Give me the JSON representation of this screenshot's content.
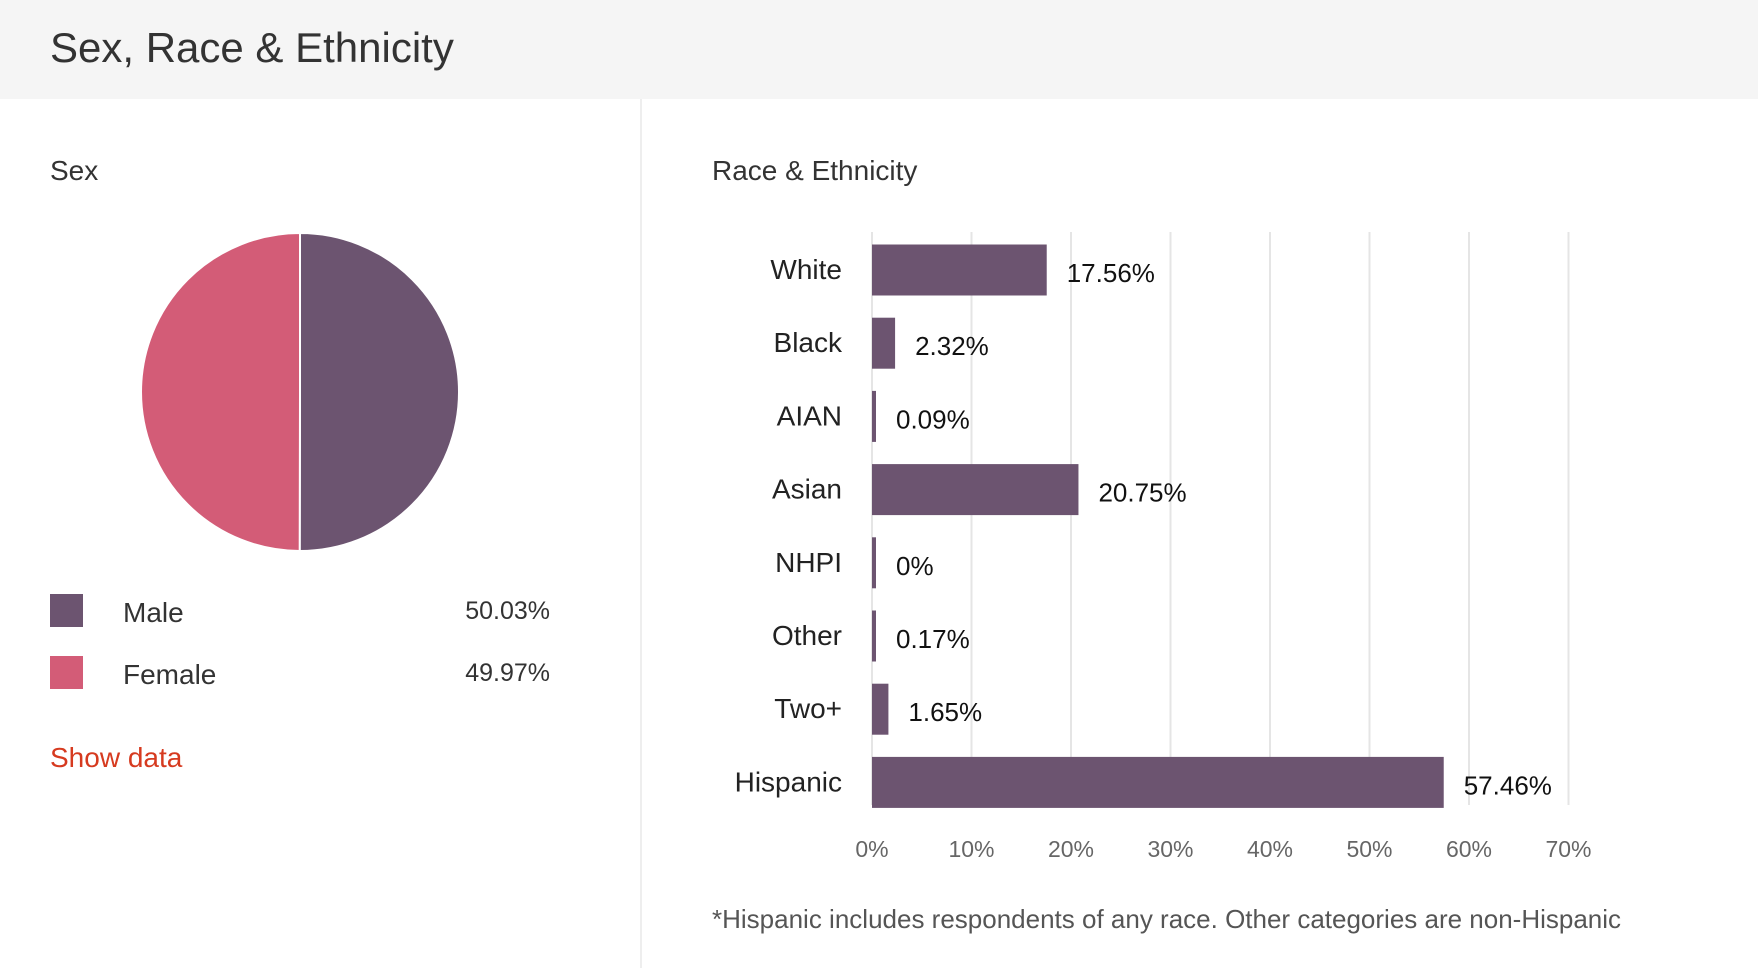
{
  "header": {
    "title": "Sex, Race & Ethnicity"
  },
  "sex_panel": {
    "title": "Sex",
    "legend": [
      {
        "label": "Male",
        "value": "50.03%",
        "color": "#6c5470"
      },
      {
        "label": "Female",
        "value": "49.97%",
        "color": "#d35c77"
      }
    ],
    "show_data_label": "Show data"
  },
  "race_panel": {
    "title": "Race & Ethnicity",
    "footnote": "*Hispanic includes respondents of any race. Other categories are non-Hispanic"
  },
  "colors": {
    "bar": "#6c5470",
    "male": "#6c5470",
    "female": "#d35c77",
    "link": "#d63a1f",
    "header_bg": "#f5f5f5",
    "grid": "#e5e5e5"
  },
  "chart_data": [
    {
      "type": "pie",
      "title": "Sex",
      "categories": [
        "Male",
        "Female"
      ],
      "values": [
        50.03,
        49.97
      ],
      "colors": [
        "#6c5470",
        "#d35c77"
      ]
    },
    {
      "type": "bar",
      "orientation": "horizontal",
      "title": "Race & Ethnicity",
      "categories": [
        "White",
        "Black",
        "AIAN",
        "Asian",
        "NHPI",
        "Other",
        "Two+",
        "Hispanic"
      ],
      "values": [
        17.56,
        2.32,
        0.09,
        20.75,
        0,
        0.17,
        1.65,
        57.46
      ],
      "value_labels": [
        "17.56%",
        "2.32%",
        "0.09%",
        "20.75%",
        "0%",
        "0.17%",
        "1.65%",
        "57.46%"
      ],
      "x_ticks": [
        "0%",
        "10%",
        "20%",
        "30%",
        "40%",
        "50%",
        "60%",
        "70%"
      ],
      "xlim": [
        0,
        70
      ],
      "grid": true,
      "color": "#6c5470"
    }
  ]
}
